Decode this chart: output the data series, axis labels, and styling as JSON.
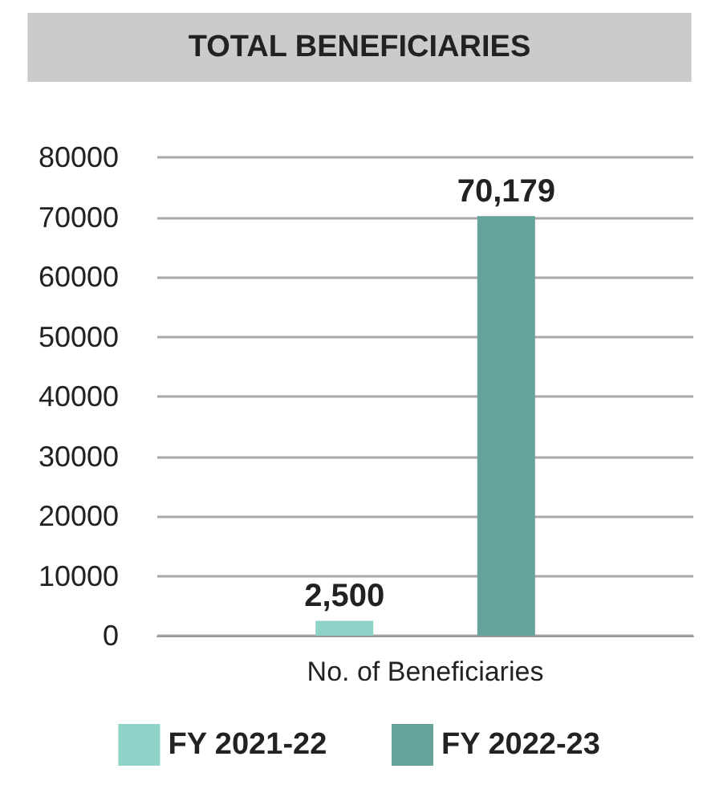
{
  "chart_data": {
    "type": "bar",
    "title": "TOTAL BENEFICIARIES",
    "categories": [
      "No. of Beneficiaries"
    ],
    "series": [
      {
        "name": "FY 2021-22",
        "color": "#8dd3c7",
        "values": [
          2500
        ],
        "value_labels": [
          "2,500"
        ]
      },
      {
        "name": "FY 2022-23",
        "color": "#65a39a",
        "values": [
          70179
        ],
        "value_labels": [
          "70,179"
        ]
      }
    ],
    "ylim": [
      0,
      80000
    ],
    "yticks": [
      0,
      10000,
      20000,
      30000,
      40000,
      50000,
      60000,
      70000,
      80000
    ],
    "grid": "y",
    "legend": "bottom"
  }
}
